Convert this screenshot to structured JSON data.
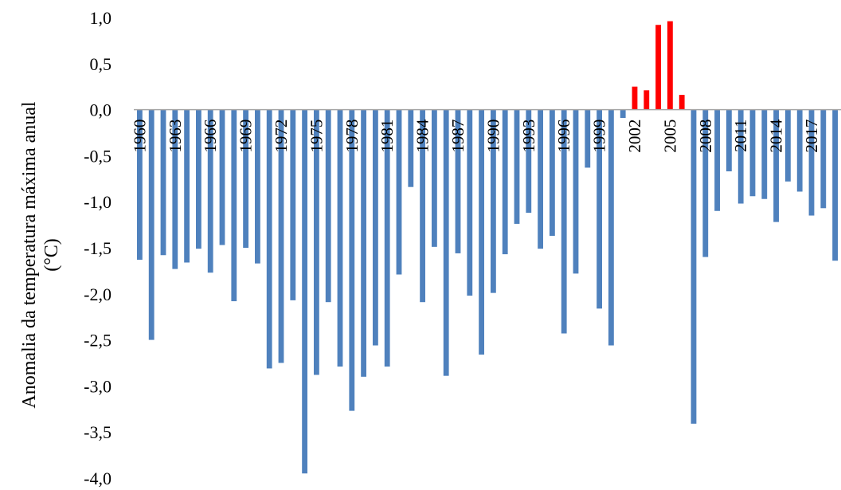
{
  "chart_data": {
    "type": "bar",
    "title": "",
    "xlabel": "",
    "ylabel_line1": "Anomalia da temperatura máxima anual",
    "ylabel_line2": "(°C)",
    "ylim": [
      -4.0,
      1.0
    ],
    "yticks": [
      1.0,
      0.5,
      0.0,
      -0.5,
      -1.0,
      -1.5,
      -2.0,
      -2.5,
      -3.0,
      -3.5,
      -4.0
    ],
    "ytick_labels": [
      "1,0",
      "0,5",
      "0,0",
      "-0,5",
      "-1,0",
      "-1,5",
      "-2,0",
      "-2,5",
      "-3,0",
      "-3,5",
      "-4,0"
    ],
    "categories": [
      1960,
      1961,
      1962,
      1963,
      1964,
      1965,
      1966,
      1967,
      1968,
      1969,
      1970,
      1971,
      1972,
      1973,
      1974,
      1975,
      1976,
      1977,
      1978,
      1979,
      1980,
      1981,
      1982,
      1983,
      1984,
      1985,
      1986,
      1987,
      1988,
      1989,
      1990,
      1991,
      1992,
      1993,
      1994,
      1995,
      1996,
      1997,
      1998,
      1999,
      2000,
      2001,
      2002,
      2003,
      2004,
      2005,
      2006,
      2007,
      2008,
      2009,
      2010,
      2011,
      2012,
      2013,
      2014,
      2015,
      2016,
      2017,
      2018,
      2019
    ],
    "xtick_labels": [
      "1960",
      "1963",
      "1966",
      "1969",
      "1972",
      "1975",
      "1978",
      "1981",
      "1984",
      "1987",
      "1990",
      "1993",
      "1996",
      "1999",
      "2002",
      "2005",
      "2008",
      "2011",
      "2014",
      "2017"
    ],
    "values": [
      -1.63,
      -2.5,
      -1.58,
      -1.73,
      -1.66,
      -1.51,
      -1.77,
      -1.47,
      -2.08,
      -1.5,
      -1.67,
      -2.81,
      -2.75,
      -2.07,
      -3.95,
      -2.88,
      -2.09,
      -2.79,
      -3.27,
      -2.9,
      -2.56,
      -2.79,
      -1.79,
      -0.84,
      -2.09,
      -1.49,
      -2.89,
      -1.56,
      -2.02,
      -2.66,
      -1.99,
      -1.57,
      -1.24,
      -1.12,
      -1.51,
      -1.37,
      -2.43,
      -1.78,
      -0.63,
      -2.16,
      -2.56,
      -0.09,
      0.25,
      0.21,
      0.92,
      0.96,
      0.16,
      -3.41,
      -1.6,
      -1.1,
      -0.67,
      -1.02,
      -0.94,
      -0.97,
      -1.22,
      -0.78,
      -0.89,
      -1.15,
      -1.07,
      -1.64
    ],
    "colors": {
      "negative": "#4f81bd",
      "positive": "#ff0000",
      "axis": "#a6a6a6"
    }
  }
}
